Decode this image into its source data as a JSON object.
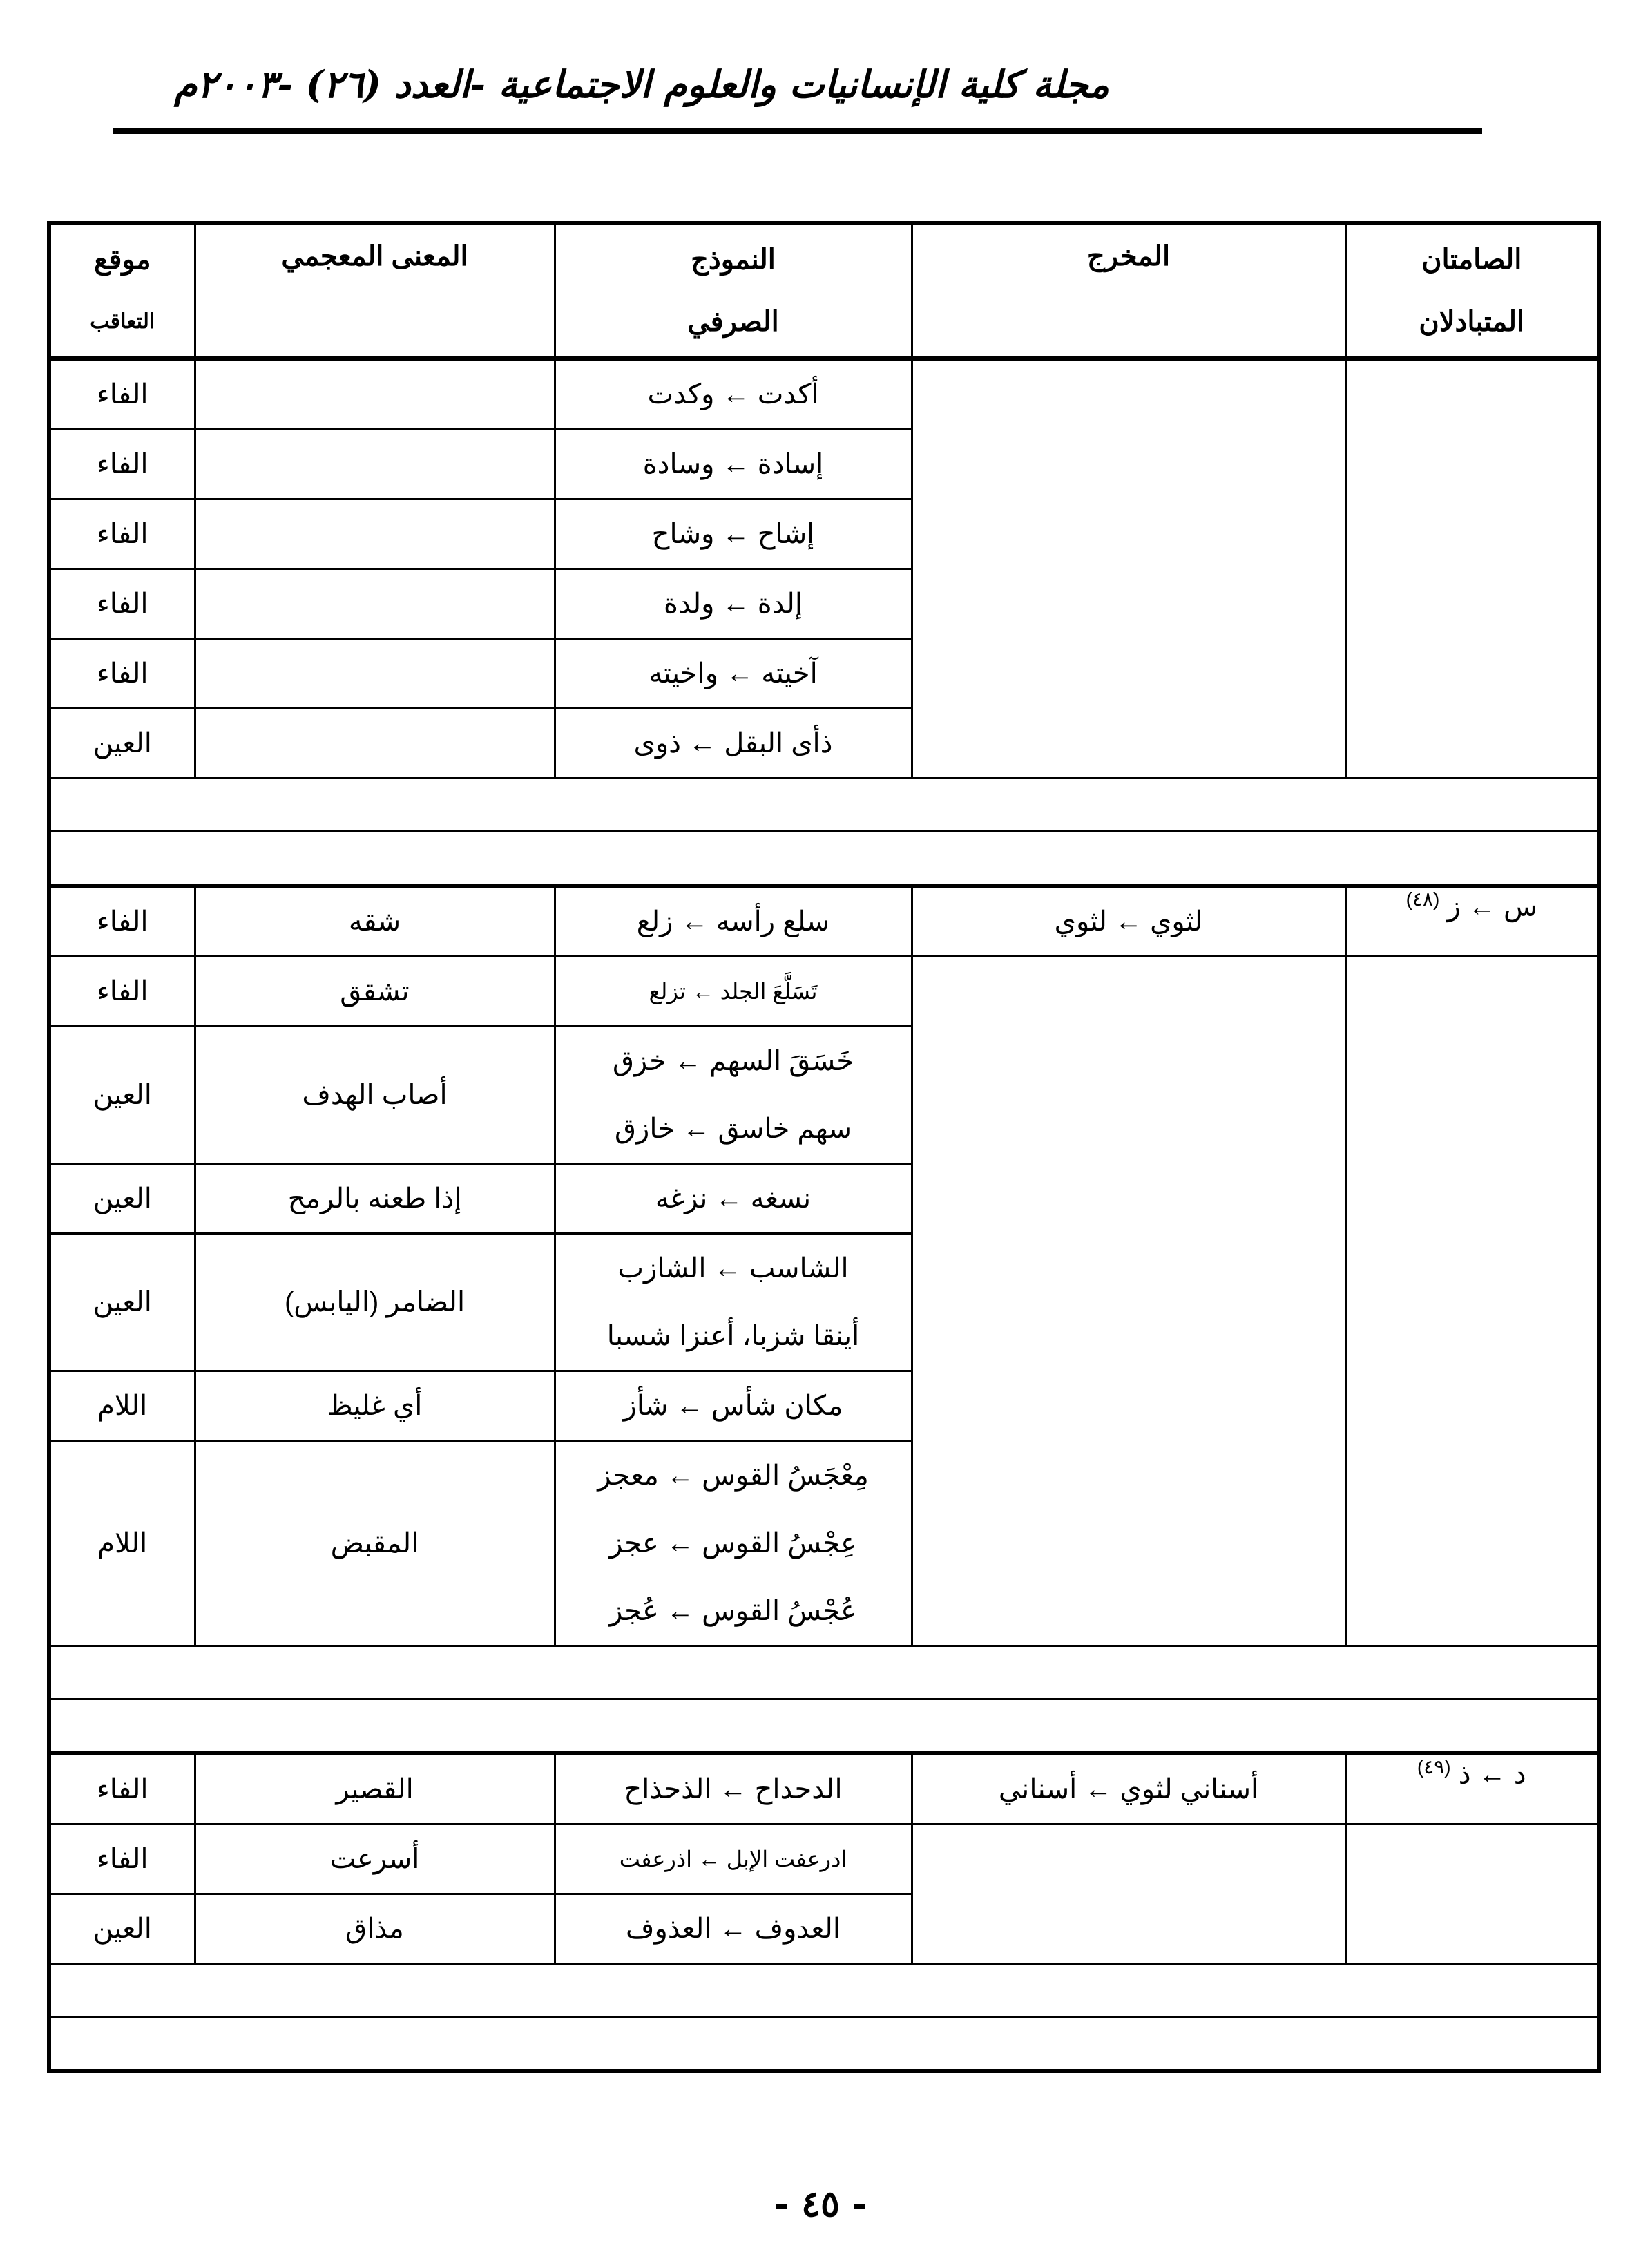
{
  "header": {
    "journal_title": "مجلة كلية الإنسانيات والعلوم الاجتماعية -العدد (٢٦) -٢٠٠٣م"
  },
  "table": {
    "columns": {
      "samitan_1": "الصامتان",
      "samitan_2": "المتبادلان",
      "makhraj": "المخرج",
      "namudhaj_1": "النموذج",
      "namudhaj_2": "الصرفي",
      "meaning": "المعنى المعجمي",
      "position_1": "موقع",
      "position_2": "التعاقب"
    },
    "sections": [
      {
        "samitan": "",
        "samitan_note": "",
        "makhraj": "",
        "rows": [
          {
            "position": "الفاء",
            "meaning": "",
            "forms": [
              "أكدت ← وكدت"
            ]
          },
          {
            "position": "الفاء",
            "meaning": "",
            "forms": [
              "إسادة ← وسادة"
            ]
          },
          {
            "position": "الفاء",
            "meaning": "",
            "forms": [
              "إشاح ← وشاح"
            ]
          },
          {
            "position": "الفاء",
            "meaning": "",
            "forms": [
              "إلدة ← ولدة"
            ]
          },
          {
            "position": "الفاء",
            "meaning": "",
            "forms": [
              "آخيته ← واخيته"
            ]
          },
          {
            "position": "العين",
            "meaning": "",
            "forms": [
              "ذأى البقل ← ذوى"
            ]
          }
        ]
      },
      {
        "samitan": "س ← ز",
        "samitan_note": "(٤٨)",
        "makhraj": "لثوي ← لثوي",
        "rows": [
          {
            "position": "الفاء",
            "meaning": "شقه",
            "forms": [
              "سلع رأسه ← زلع"
            ]
          },
          {
            "position": "الفاء",
            "meaning": "تشقق",
            "forms": [
              "تَسَلَّعَ الجلد ← تزلع"
            ]
          },
          {
            "position": "العين",
            "meaning": "أصاب الهدف",
            "forms": [
              "خَسَقَ السهم ← خزق",
              "سهم خاسق ← خازق"
            ]
          },
          {
            "position": "العين",
            "meaning": "إذا طعنه بالرمح",
            "forms": [
              "نسغه ← نزغه"
            ]
          },
          {
            "position": "العين",
            "meaning": "الضامر (اليابس)",
            "forms": [
              "الشاسب ← الشازب",
              "أينقا شزبا، أعنزا شسبا"
            ]
          },
          {
            "position": "اللام",
            "meaning": "أي غليظ",
            "forms": [
              "مكان شأس ← شأز"
            ]
          },
          {
            "position": "اللام",
            "meaning": "المقبض",
            "forms": [
              "مِعْجَسُ القوس ← معجز",
              "عِجْسُ القوس ← عجز",
              "عُجْسُ القوس ← عُجز"
            ]
          }
        ]
      },
      {
        "samitan": "د ← ذ",
        "samitan_note": "(٤٩)",
        "makhraj": "أسناني لثوي ← أسناني",
        "rows": [
          {
            "position": "الفاء",
            "meaning": "القصير",
            "forms": [
              "الدحداح ← الذحذاح"
            ]
          },
          {
            "position": "الفاء",
            "meaning": "أسرعت",
            "forms": [
              "ادرعفت الإبل ← اذرعفت"
            ]
          },
          {
            "position": "العين",
            "meaning": "مذاق",
            "forms": [
              "العدوف ← العذوف"
            ]
          }
        ]
      }
    ]
  },
  "footer": {
    "page_number": "- ٤٥ -"
  }
}
